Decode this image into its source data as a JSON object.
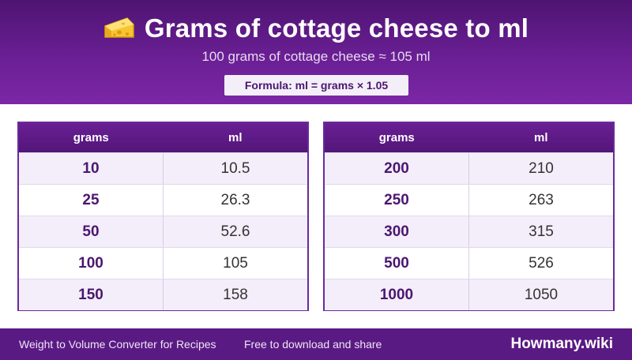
{
  "header": {
    "title": "Grams of cottage cheese to ml",
    "subtitle": "100 grams of cottage cheese ≈ 105 ml",
    "formula": "Formula: ml = grams × 1.05",
    "icon": "cheese-icon"
  },
  "table_headers": {
    "grams": "grams",
    "ml": "ml"
  },
  "left_table": [
    {
      "grams": "10",
      "ml": "10.5"
    },
    {
      "grams": "25",
      "ml": "26.3"
    },
    {
      "grams": "50",
      "ml": "52.6"
    },
    {
      "grams": "100",
      "ml": "105"
    },
    {
      "grams": "150",
      "ml": "158"
    }
  ],
  "right_table": [
    {
      "grams": "200",
      "ml": "210"
    },
    {
      "grams": "250",
      "ml": "263"
    },
    {
      "grams": "300",
      "ml": "315"
    },
    {
      "grams": "500",
      "ml": "526"
    },
    {
      "grams": "1000",
      "ml": "1050"
    }
  ],
  "footer": {
    "left": "Weight to Volume Converter for Recipes",
    "middle": "Free to download and share",
    "brand": "Howmany.wiki"
  },
  "colors": {
    "header_dark": "#4e1472",
    "header_light": "#7b27a6",
    "accent_text": "#4b1670",
    "footer_bg": "#5a1a83"
  }
}
